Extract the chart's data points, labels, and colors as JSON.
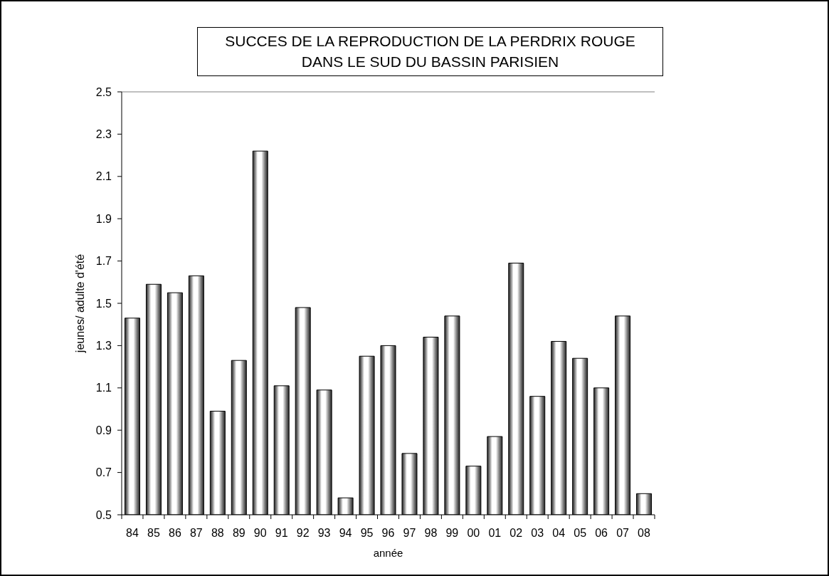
{
  "chart_data": {
    "type": "bar",
    "title": "SUCCES DE LA REPRODUCTION DE LA PERDRIX ROUGE\nDANS LE SUD DU BASSIN PARISIEN",
    "xlabel": "année",
    "ylabel": "jeunes/ adulte d'été",
    "categories": [
      "84",
      "85",
      "86",
      "87",
      "88",
      "89",
      "90",
      "91",
      "92",
      "93",
      "94",
      "95",
      "96",
      "97",
      "98",
      "99",
      "00",
      "01",
      "02",
      "03",
      "04",
      "05",
      "06",
      "07",
      "08"
    ],
    "values": [
      1.43,
      1.59,
      1.55,
      1.63,
      0.99,
      1.23,
      2.22,
      1.11,
      1.48,
      1.09,
      0.58,
      1.25,
      1.3,
      0.79,
      1.34,
      1.44,
      0.73,
      0.87,
      1.69,
      1.06,
      1.32,
      1.24,
      1.1,
      1.44,
      0.6
    ],
    "color": "#000000",
    "ylim": [
      0.5,
      2.5
    ],
    "yticks": [
      0.5,
      0.7,
      0.9,
      1.1,
      1.3,
      1.5,
      1.7,
      1.9,
      2.1,
      2.3,
      2.5
    ]
  }
}
